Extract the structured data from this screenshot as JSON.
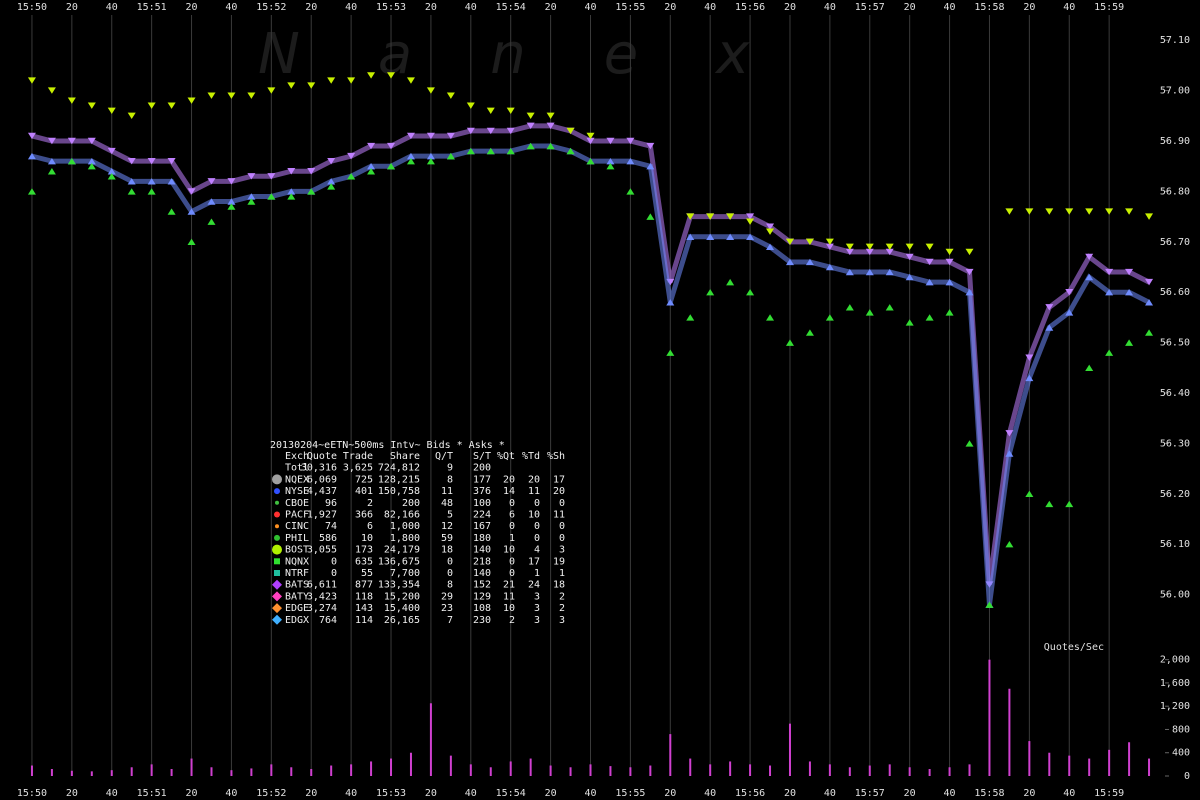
{
  "watermark": "Nanex",
  "chart_data": [
    {
      "type": "scatter",
      "x": [
        0,
        10,
        20,
        30,
        40,
        50,
        60,
        70,
        80,
        90,
        100,
        110,
        120,
        130,
        140,
        150,
        160,
        170,
        180,
        190,
        200,
        210,
        220,
        230,
        240,
        250,
        260,
        270,
        280,
        290,
        300,
        310,
        320,
        330,
        340,
        350,
        360,
        370,
        380,
        390,
        400,
        410,
        420,
        430,
        440,
        450,
        460,
        470,
        480,
        490,
        500,
        510,
        520,
        530,
        540,
        550,
        560
      ],
      "xlim": [
        -8.5,
        568
      ],
      "xticks": [
        {
          "value": 0,
          "label": "15:50"
        },
        {
          "value": 20,
          "label": "20"
        },
        {
          "value": 40,
          "label": "40"
        },
        {
          "value": 60,
          "label": "15:51"
        },
        {
          "value": 80,
          "label": "20"
        },
        {
          "value": 100,
          "label": "40"
        },
        {
          "value": 120,
          "label": "15:52"
        },
        {
          "value": 140,
          "label": "20"
        },
        {
          "value": 160,
          "label": "40"
        },
        {
          "value": 180,
          "label": "15:53"
        },
        {
          "value": 200,
          "label": "20"
        },
        {
          "value": 220,
          "label": "40"
        },
        {
          "value": 240,
          "label": "15:54"
        },
        {
          "value": 260,
          "label": "20"
        },
        {
          "value": 280,
          "label": "40"
        },
        {
          "value": 300,
          "label": "15:55"
        },
        {
          "value": 320,
          "label": "20"
        },
        {
          "value": 340,
          "label": "40"
        },
        {
          "value": 360,
          "label": "15:56"
        },
        {
          "value": 380,
          "label": "20"
        },
        {
          "value": 400,
          "label": "40"
        },
        {
          "value": 420,
          "label": "15:57"
        },
        {
          "value": 440,
          "label": "20"
        },
        {
          "value": 460,
          "label": "40"
        },
        {
          "value": 480,
          "label": "15:58"
        },
        {
          "value": 500,
          "label": "20"
        },
        {
          "value": 520,
          "label": "40"
        },
        {
          "value": 540,
          "label": "15:59"
        }
      ],
      "ylim": [
        55.91,
        57.15
      ],
      "yticks": [
        {
          "value": 56.0,
          "label": "56.00"
        },
        {
          "value": 56.1,
          "label": "56.10"
        },
        {
          "value": 56.2,
          "label": "56.20"
        },
        {
          "value": 56.3,
          "label": "56.30"
        },
        {
          "value": 56.4,
          "label": "56.40"
        },
        {
          "value": 56.5,
          "label": "56.50"
        },
        {
          "value": 56.6,
          "label": "56.60"
        },
        {
          "value": 56.7,
          "label": "56.70"
        },
        {
          "value": 56.8,
          "label": "56.80"
        },
        {
          "value": 56.9,
          "label": "56.90"
        },
        {
          "value": 57.0,
          "label": "57.00"
        },
        {
          "value": 57.1,
          "label": "57.10"
        }
      ],
      "grid": "x",
      "series": [
        {
          "color": "#c080ff",
          "marker": "down",
          "connect": true,
          "values": [
            56.91,
            56.9,
            56.9,
            56.9,
            56.88,
            56.86,
            56.86,
            56.86,
            56.8,
            56.82,
            56.82,
            56.83,
            56.83,
            56.84,
            56.84,
            56.86,
            56.87,
            56.89,
            56.89,
            56.91,
            56.91,
            56.91,
            56.92,
            56.92,
            56.92,
            56.93,
            56.93,
            56.92,
            56.9,
            56.9,
            56.9,
            56.89,
            56.62,
            56.75,
            56.75,
            56.75,
            56.75,
            56.73,
            56.7,
            56.7,
            56.69,
            56.68,
            56.68,
            56.68,
            56.67,
            56.66,
            56.66,
            56.64,
            56.02,
            56.32,
            56.47,
            56.57,
            56.6,
            56.67,
            56.64,
            56.64,
            56.62
          ]
        },
        {
          "color": "#6f8cff",
          "marker": "up",
          "connect": true,
          "values": [
            56.87,
            56.86,
            56.86,
            56.86,
            56.84,
            56.82,
            56.82,
            56.82,
            56.76,
            56.78,
            56.78,
            56.79,
            56.79,
            56.8,
            56.8,
            56.82,
            56.83,
            56.85,
            56.85,
            56.87,
            56.87,
            56.87,
            56.88,
            56.88,
            56.88,
            56.89,
            56.89,
            56.88,
            56.86,
            56.86,
            56.86,
            56.85,
            56.58,
            56.71,
            56.71,
            56.71,
            56.71,
            56.69,
            56.66,
            56.66,
            56.65,
            56.64,
            56.64,
            56.64,
            56.63,
            56.62,
            56.62,
            56.6,
            55.98,
            56.28,
            56.43,
            56.53,
            56.56,
            56.63,
            56.6,
            56.6,
            56.58
          ]
        },
        {
          "color": "#c8f000",
          "marker": "down",
          "connect": false,
          "values": [
            57.02,
            57.0,
            56.98,
            56.97,
            56.96,
            56.95,
            56.97,
            56.97,
            56.98,
            56.99,
            56.99,
            56.99,
            57.0,
            57.01,
            57.01,
            57.02,
            57.02,
            57.03,
            57.03,
            57.02,
            57.0,
            56.99,
            56.97,
            56.96,
            56.96,
            56.95,
            56.95,
            56.92,
            56.91,
            null,
            null,
            null,
            null,
            56.75,
            56.75,
            56.75,
            56.74,
            56.72,
            56.7,
            56.7,
            56.7,
            56.69,
            56.69,
            56.69,
            56.69,
            56.69,
            56.68,
            56.68,
            null,
            56.76,
            56.76,
            56.76,
            56.76,
            56.76,
            56.76,
            56.76,
            56.75
          ]
        },
        {
          "color": "#33dd33",
          "marker": "up",
          "connect": false,
          "values": [
            56.8,
            56.84,
            56.86,
            56.85,
            56.83,
            56.8,
            56.8,
            56.76,
            56.7,
            56.74,
            56.77,
            56.78,
            56.79,
            56.79,
            56.8,
            56.81,
            56.83,
            56.84,
            56.85,
            56.86,
            56.86,
            56.87,
            56.88,
            56.88,
            56.88,
            56.89,
            56.89,
            56.88,
            56.86,
            56.85,
            56.8,
            56.75,
            56.48,
            56.55,
            56.6,
            56.62,
            56.6,
            56.55,
            56.5,
            56.52,
            56.55,
            56.57,
            56.56,
            56.57,
            56.54,
            56.55,
            56.56,
            56.3,
            55.98,
            56.1,
            56.2,
            56.18,
            56.18,
            56.45,
            56.48,
            56.5,
            56.52
          ]
        }
      ],
      "summary": {
        "title": "20130204~eETN~500ms Intv~ Bids * Asks *",
        "columns": [
          "Exch",
          "Quote",
          "Trade",
          "Share",
          "Q/T",
          "S/T",
          "%Qt",
          "%Td",
          "%Sh"
        ],
        "rows": [
          {
            "cells": [
              "Totl",
              "30,316",
              "3,625",
              "724,812",
              "9",
              "200"
            ]
          },
          {
            "color": "#a0a0a0",
            "marker": "circle",
            "cells": [
              "NQEX",
              "6,069",
              "725",
              "128,215",
              "8",
              "177",
              "20",
              "20",
              "17"
            ]
          },
          {
            "color": "#3050ff",
            "marker": "dot",
            "cells": [
              "NYSE",
              "4,437",
              "401",
              "150,758",
              "11",
              "376",
              "14",
              "11",
              "20"
            ]
          },
          {
            "color": "#40c040",
            "marker": "small",
            "cells": [
              "CBOE",
              "96",
              "2",
              "200",
              "48",
              "100",
              "0",
              "0",
              "0"
            ]
          },
          {
            "color": "#ff3030",
            "marker": "dot",
            "cells": [
              "PACF",
              "1,927",
              "366",
              "82,166",
              "5",
              "224",
              "6",
              "10",
              "11"
            ]
          },
          {
            "color": "#ff9020",
            "marker": "small",
            "cells": [
              "CINC",
              "74",
              "6",
              "1,000",
              "12",
              "167",
              "0",
              "0",
              "0"
            ]
          },
          {
            "color": "#30c030",
            "marker": "dot",
            "cells": [
              "PHIL",
              "586",
              "10",
              "1,800",
              "59",
              "180",
              "1",
              "0",
              "0"
            ]
          },
          {
            "color": "#b0f000",
            "marker": "circle",
            "cells": [
              "BOST",
              "3,055",
              "173",
              "24,179",
              "18",
              "140",
              "10",
              "4",
              "3"
            ]
          },
          {
            "color": "#30e030",
            "marker": "square",
            "cells": [
              "NQNX",
              "0",
              "635",
              "136,675",
              "0",
              "218",
              "0",
              "17",
              "19"
            ]
          },
          {
            "color": "#20c0a0",
            "marker": "square",
            "cells": [
              "NTRF",
              "0",
              "55",
              "7,700",
              "0",
              "140",
              "0",
              "1",
              "1"
            ]
          },
          {
            "color": "#b040ff",
            "marker": "diamond",
            "cells": [
              "BATS",
              "6,611",
              "877",
              "133,354",
              "8",
              "152",
              "21",
              "24",
              "18"
            ]
          },
          {
            "color": "#ff40c0",
            "marker": "diamond",
            "cells": [
              "BATY",
              "3,423",
              "118",
              "15,200",
              "29",
              "129",
              "11",
              "3",
              "2"
            ]
          },
          {
            "color": "#ff9030",
            "marker": "diamond",
            "cells": [
              "EDGE",
              "3,274",
              "143",
              "15,400",
              "23",
              "108",
              "10",
              "3",
              "2"
            ]
          },
          {
            "color": "#40b0ff",
            "marker": "diamond",
            "cells": [
              "EDGX",
              "764",
              "114",
              "26,165",
              "7",
              "230",
              "2",
              "3",
              "3"
            ]
          }
        ]
      }
    },
    {
      "type": "bar",
      "title": "Quotes/Sec",
      "x": [
        0,
        10,
        20,
        30,
        40,
        50,
        60,
        70,
        80,
        90,
        100,
        110,
        120,
        130,
        140,
        150,
        160,
        170,
        180,
        190,
        200,
        210,
        220,
        230,
        240,
        250,
        260,
        270,
        280,
        290,
        300,
        310,
        320,
        330,
        340,
        350,
        360,
        370,
        380,
        390,
        400,
        410,
        420,
        430,
        440,
        450,
        460,
        470,
        480,
        490,
        500,
        510,
        520,
        530,
        540,
        550,
        560
      ],
      "values": [
        180,
        120,
        90,
        80,
        100,
        150,
        200,
        120,
        300,
        150,
        100,
        130,
        200,
        150,
        120,
        180,
        200,
        250,
        300,
        400,
        1250,
        350,
        200,
        150,
        250,
        300,
        180,
        150,
        200,
        170,
        150,
        180,
        720,
        300,
        200,
        250,
        200,
        180,
        900,
        250,
        200,
        150,
        180,
        200,
        150,
        120,
        150,
        200,
        2000,
        1500,
        600,
        400,
        350,
        300,
        450,
        580,
        300
      ],
      "color": "#d040d0",
      "xlim": [
        -8.5,
        568
      ],
      "ylim": [
        0,
        2080
      ],
      "yticks": [
        0,
        400,
        800,
        {
          "value": 1200,
          "label": "1,200"
        },
        {
          "value": 1600,
          "label": "1,600"
        },
        {
          "value": 2000,
          "label": "2,000"
        }
      ]
    }
  ]
}
